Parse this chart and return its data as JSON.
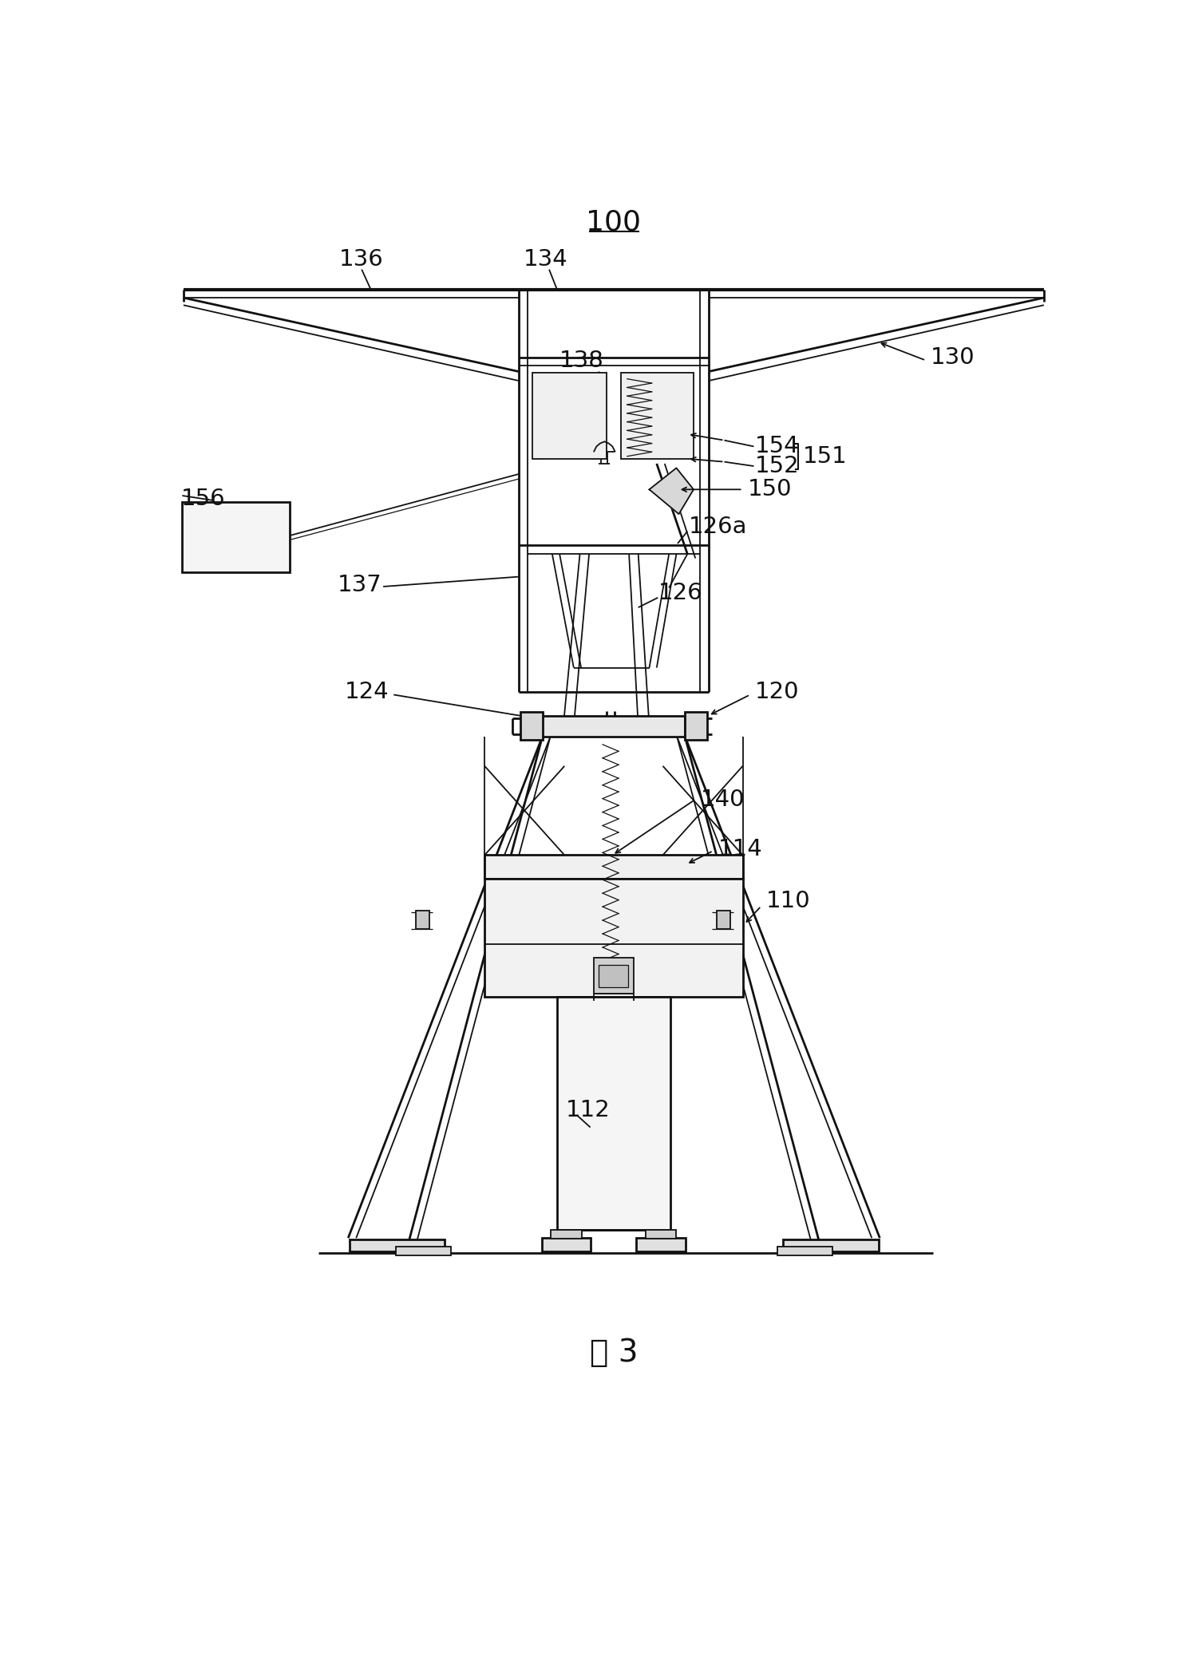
{
  "bg": "#ffffff",
  "lc": "#111111",
  "title": "100",
  "fig_label": "图 3",
  "fontsize": 21,
  "lw_thick": 3.0,
  "lw_med": 2.0,
  "lw_thin": 1.3,
  "lw_vt": 0.9
}
